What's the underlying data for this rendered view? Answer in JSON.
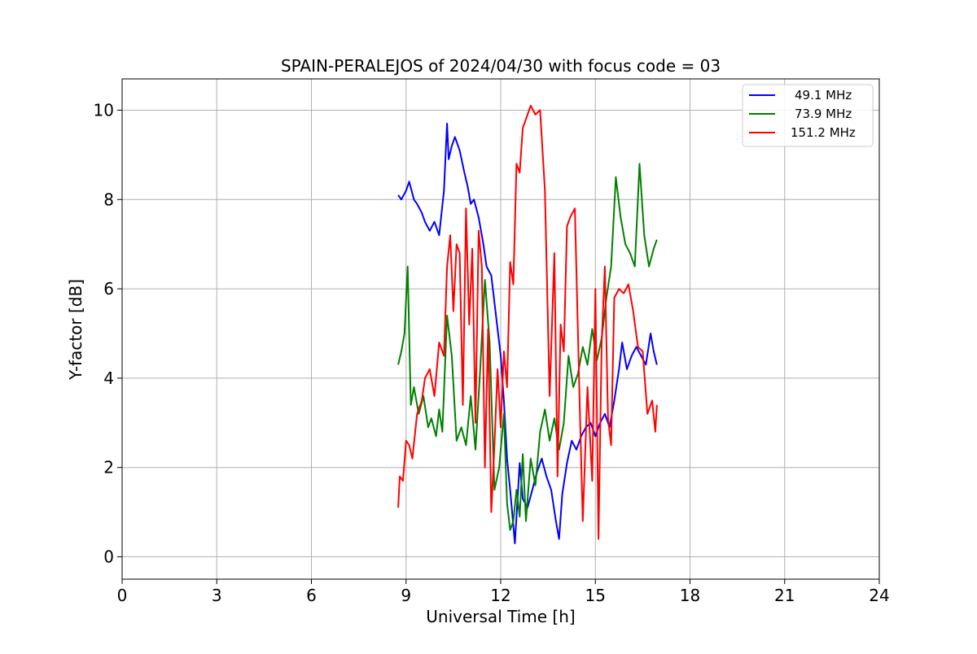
{
  "chart_data": {
    "type": "line",
    "title": "SPAIN-PERALEJOS of 2024/04/30 with focus code = 03",
    "xlabel": "Universal Time [h]",
    "ylabel": "Y-factor [dB]",
    "xlim": [
      0,
      24
    ],
    "ylim": [
      -0.5,
      10.7
    ],
    "xticks": [
      0,
      3,
      6,
      9,
      12,
      15,
      18,
      21,
      24
    ],
    "yticks": [
      0,
      2,
      4,
      6,
      8,
      10
    ],
    "grid": true,
    "legend_position": "top-right",
    "series": [
      {
        "name": "49.1 MHz",
        "color": "#0000ff",
        "x": [
          8.75,
          8.85,
          9.0,
          9.1,
          9.25,
          9.35,
          9.5,
          9.6,
          9.75,
          9.9,
          10.05,
          10.2,
          10.3,
          10.35,
          10.45,
          10.55,
          10.7,
          10.85,
          10.95,
          11.05,
          11.15,
          11.3,
          11.45,
          11.55,
          11.7,
          11.85,
          12.0,
          12.1,
          12.2,
          12.3,
          12.4,
          12.45,
          12.5,
          12.6,
          12.7,
          12.85,
          13.0,
          13.15,
          13.3,
          13.45,
          13.6,
          13.75,
          13.85,
          13.95,
          14.1,
          14.25,
          14.4,
          14.55,
          14.7,
          14.85,
          15.0,
          15.15,
          15.3,
          15.45,
          15.6,
          15.75,
          15.85,
          16.0,
          16.15,
          16.3,
          16.45,
          16.6,
          16.75,
          16.85,
          16.95
        ],
        "y": [
          8.1,
          8.0,
          8.2,
          8.4,
          8.0,
          7.9,
          7.7,
          7.5,
          7.3,
          7.5,
          7.2,
          8.2,
          9.7,
          8.9,
          9.2,
          9.4,
          9.1,
          8.6,
          8.3,
          7.9,
          8.0,
          7.6,
          7.0,
          6.5,
          6.3,
          5.4,
          4.5,
          3.5,
          2.2,
          1.5,
          0.7,
          0.3,
          0.9,
          2.1,
          1.3,
          1.1,
          1.5,
          1.9,
          2.2,
          1.8,
          1.5,
          0.8,
          0.4,
          1.4,
          2.1,
          2.6,
          2.4,
          2.7,
          2.9,
          3.0,
          2.7,
          3.0,
          3.2,
          2.9,
          3.5,
          4.2,
          4.8,
          4.2,
          4.5,
          4.7,
          4.5,
          4.3,
          5.0,
          4.6,
          4.3
        ]
      },
      {
        "name": "73.9 MHz",
        "color": "#008000",
        "x": [
          8.75,
          8.85,
          8.95,
          9.05,
          9.15,
          9.25,
          9.4,
          9.55,
          9.7,
          9.8,
          9.95,
          10.05,
          10.15,
          10.3,
          10.45,
          10.6,
          10.75,
          10.9,
          11.05,
          11.2,
          11.35,
          11.5,
          11.65,
          11.8,
          11.95,
          12.1,
          12.2,
          12.3,
          12.4,
          12.5,
          12.6,
          12.7,
          12.8,
          12.95,
          13.1,
          13.25,
          13.4,
          13.55,
          13.7,
          13.85,
          14.0,
          14.15,
          14.3,
          14.45,
          14.6,
          14.75,
          14.9,
          15.05,
          15.2,
          15.35,
          15.5,
          15.65,
          15.8,
          15.95,
          16.1,
          16.25,
          16.4,
          16.55,
          16.7,
          16.85,
          16.95
        ],
        "y": [
          4.3,
          4.6,
          5.0,
          6.5,
          3.4,
          3.8,
          3.2,
          3.6,
          2.9,
          3.1,
          2.7,
          3.3,
          2.8,
          5.4,
          4.5,
          2.6,
          2.9,
          2.5,
          3.6,
          2.4,
          4.2,
          6.2,
          4.8,
          1.5,
          2.0,
          3.2,
          1.2,
          0.6,
          0.8,
          1.5,
          0.9,
          2.3,
          0.8,
          2.2,
          1.6,
          2.8,
          3.3,
          2.6,
          3.1,
          2.4,
          3.0,
          4.5,
          3.8,
          4.1,
          4.7,
          4.3,
          5.1,
          4.4,
          4.9,
          5.8,
          6.5,
          8.5,
          7.6,
          7.0,
          6.8,
          6.5,
          8.8,
          7.2,
          6.5,
          6.9,
          7.1
        ]
      },
      {
        "name": "151.2 MHz",
        "color": "#ff0000",
        "x": [
          8.75,
          8.8,
          8.9,
          9.0,
          9.1,
          9.2,
          9.35,
          9.5,
          9.6,
          9.75,
          9.9,
          10.05,
          10.2,
          10.3,
          10.4,
          10.5,
          10.6,
          10.7,
          10.8,
          10.9,
          11.0,
          11.1,
          11.2,
          11.3,
          11.4,
          11.5,
          11.6,
          11.7,
          11.8,
          11.9,
          12.0,
          12.1,
          12.2,
          12.3,
          12.4,
          12.5,
          12.6,
          12.7,
          12.8,
          12.95,
          13.1,
          13.25,
          13.4,
          13.55,
          13.7,
          13.8,
          13.9,
          14.0,
          14.1,
          14.2,
          14.35,
          14.5,
          14.6,
          14.75,
          14.9,
          15.0,
          15.1,
          15.2,
          15.3,
          15.4,
          15.5,
          15.6,
          15.75,
          15.9,
          16.05,
          16.2,
          16.35,
          16.5,
          16.65,
          16.8,
          16.9,
          16.95
        ],
        "y": [
          1.1,
          1.8,
          1.7,
          2.6,
          2.5,
          2.2,
          3.2,
          3.5,
          4.0,
          4.2,
          3.6,
          4.8,
          4.5,
          6.5,
          7.2,
          5.5,
          7.0,
          6.8,
          3.4,
          7.8,
          5.2,
          6.9,
          3.0,
          7.3,
          6.5,
          2.0,
          5.1,
          1.0,
          2.5,
          4.2,
          2.9,
          4.6,
          3.8,
          6.6,
          6.1,
          8.8,
          8.6,
          9.6,
          9.8,
          10.1,
          9.9,
          10.0,
          8.2,
          3.6,
          6.8,
          1.8,
          5.2,
          4.6,
          7.4,
          7.6,
          7.8,
          3.5,
          0.8,
          3.8,
          1.7,
          6.0,
          0.4,
          4.8,
          6.5,
          3.1,
          2.5,
          5.8,
          6.0,
          5.9,
          6.1,
          5.5,
          4.7,
          4.6,
          3.2,
          3.5,
          2.8,
          3.4
        ]
      }
    ]
  }
}
